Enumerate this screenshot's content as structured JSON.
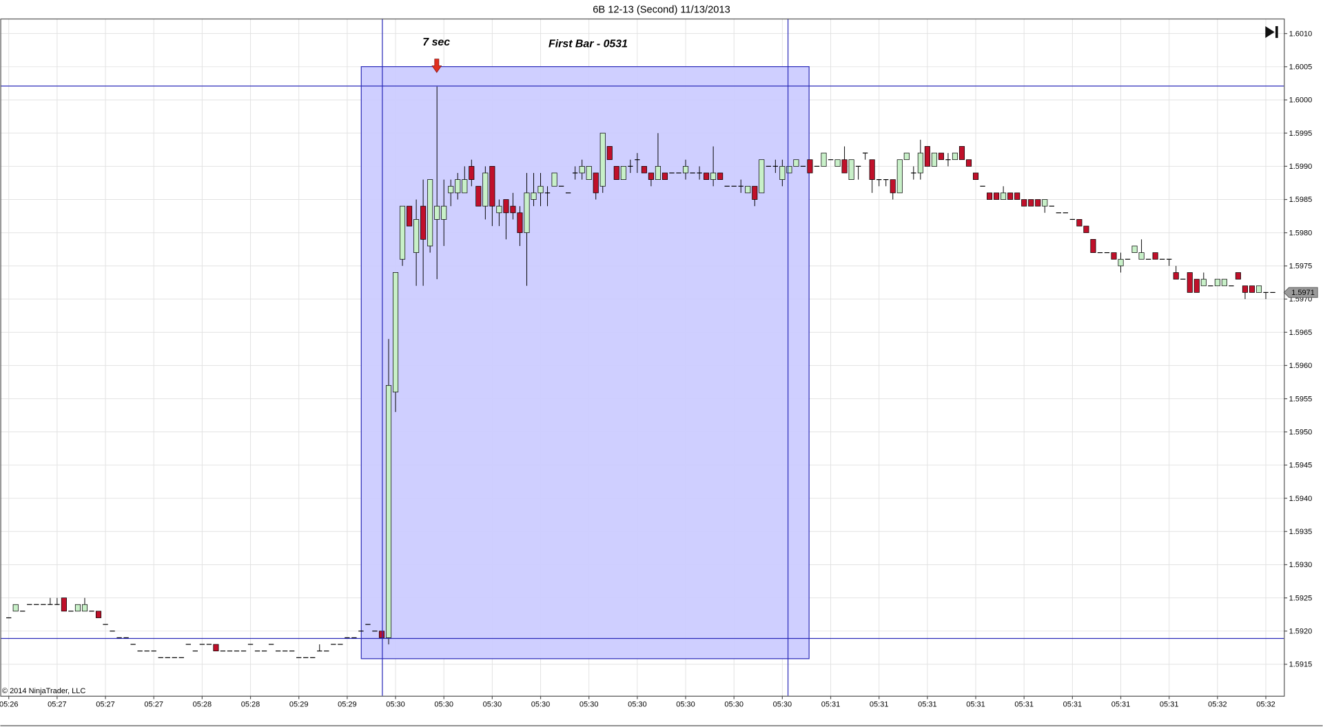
{
  "chart_data": {
    "type": "candlestick",
    "title": "6B 12-13 (Second)  11/13/2013",
    "annotations": [
      "7 sec",
      "First Bar - 0531"
    ],
    "copyright": "© 2014 NinjaTrader, LLC",
    "last_price": 1.5971,
    "up_color": "#c8f0c8",
    "down_color": "#c0102a",
    "grid": true,
    "ylim": [
      1.591,
      1.6012
    ],
    "yticks": [
      1.5915,
      {
        "value": 1.592,
        "label": "1.5920"
      },
      1.5925,
      {
        "value": 1.593,
        "label": "1.5930"
      },
      1.5935,
      {
        "value": 1.594,
        "label": "1.5940"
      },
      1.5945,
      {
        "value": 1.595,
        "label": "1.5950"
      },
      1.5955,
      {
        "value": 1.596,
        "label": "1.5960"
      },
      1.5965,
      {
        "value": 1.597,
        "label": "1.5970"
      },
      1.5975,
      {
        "value": 1.598,
        "label": "1.5980"
      },
      1.5985,
      {
        "value": 1.599,
        "label": "1.5990"
      },
      1.5995,
      {
        "value": 1.6,
        "label": "1.6000"
      },
      1.6005,
      {
        "value": 1.601,
        "label": "1.6010"
      }
    ],
    "categories": [
      "05:26",
      null,
      null,
      null,
      null,
      null,
      null,
      "05:27",
      null,
      null,
      null,
      null,
      null,
      null,
      "05:27",
      null,
      null,
      null,
      null,
      null,
      null,
      "05:27",
      null,
      null,
      null,
      null,
      null,
      null,
      "05:28",
      null,
      null,
      null,
      null,
      null,
      null,
      "05:28",
      null,
      null,
      null,
      null,
      null,
      null,
      "05:29",
      null,
      null,
      null,
      null,
      null,
      null,
      "05:29",
      null,
      null,
      null,
      null,
      null,
      null,
      "05:30",
      null,
      null,
      null,
      null,
      null,
      null,
      "05:30",
      null,
      null,
      null,
      null,
      null,
      null,
      "05:30",
      null,
      null,
      null,
      null,
      null,
      null,
      "05:30",
      null,
      null,
      null,
      null,
      null,
      null,
      "05:30",
      null,
      null,
      null,
      null,
      null,
      null,
      "05:30",
      null,
      null,
      null,
      null,
      null,
      null,
      "05:30",
      null,
      null,
      null,
      null,
      null,
      null,
      "05:30",
      null,
      null,
      null,
      null,
      null,
      null,
      "05:30",
      null,
      null,
      null,
      null,
      null,
      null,
      "05:31",
      null,
      null,
      null,
      null,
      null,
      null,
      "05:31",
      null,
      null,
      null,
      null,
      null,
      null,
      "05:31",
      null,
      null,
      null,
      null,
      null,
      null,
      "05:31",
      null,
      null,
      null,
      null,
      null,
      null,
      "05:31",
      null,
      null,
      null,
      null,
      null,
      null,
      "05:31",
      null,
      null,
      null,
      null,
      null,
      null,
      "05:31",
      null,
      null,
      null,
      null,
      null,
      null,
      "05:31",
      null,
      null,
      null,
      null,
      null,
      null,
      "05:32",
      null,
      null,
      null,
      null,
      null,
      null,
      "05:32",
      null
    ],
    "ohlc": [
      [
        1.5922,
        1.5922,
        1.5922,
        1.5922
      ],
      [
        1.5923,
        1.5924,
        1.5923,
        1.5924
      ],
      [
        1.5923,
        1.5923,
        1.5923,
        1.5923
      ],
      [
        1.5924,
        1.5924,
        1.5924,
        1.5924
      ],
      [
        1.5924,
        1.5924,
        1.5924,
        1.5924
      ],
      [
        1.5924,
        1.5924,
        1.5924,
        1.5924
      ],
      [
        1.5924,
        1.5925,
        1.5924,
        1.5924
      ],
      [
        1.5924,
        1.5925,
        1.5924,
        1.5924
      ],
      [
        1.5925,
        1.5925,
        1.5923,
        1.5923
      ],
      [
        1.5923,
        1.5923,
        1.5923,
        1.5923
      ],
      [
        1.5923,
        1.5924,
        1.5923,
        1.5924
      ],
      [
        1.5923,
        1.5925,
        1.5923,
        1.5924
      ],
      [
        1.5923,
        1.5923,
        1.5923,
        1.5923
      ],
      [
        1.5923,
        1.5923,
        1.5922,
        1.5922
      ],
      [
        1.5921,
        1.5921,
        1.5921,
        1.5921
      ],
      [
        1.592,
        1.592,
        1.592,
        1.592
      ],
      [
        1.5919,
        1.5919,
        1.5919,
        1.5919
      ],
      [
        1.5919,
        1.5919,
        1.5919,
        1.5919
      ],
      [
        1.5918,
        1.5918,
        1.5918,
        1.5918
      ],
      [
        1.5917,
        1.5917,
        1.5917,
        1.5917
      ],
      [
        1.5917,
        1.5917,
        1.5917,
        1.5917
      ],
      [
        1.5917,
        1.5917,
        1.5917,
        1.5917
      ],
      [
        1.5916,
        1.5916,
        1.5916,
        1.5916
      ],
      [
        1.5916,
        1.5916,
        1.5916,
        1.5916
      ],
      [
        1.5916,
        1.5916,
        1.5916,
        1.5916
      ],
      [
        1.5916,
        1.5916,
        1.5916,
        1.5916
      ],
      [
        1.5918,
        1.5918,
        1.5918,
        1.5918
      ],
      [
        1.5917,
        1.5917,
        1.5917,
        1.5917
      ],
      [
        1.5918,
        1.5918,
        1.5918,
        1.5918
      ],
      [
        1.5918,
        1.5918,
        1.5918,
        1.5918
      ],
      [
        1.5918,
        1.5918,
        1.5917,
        1.5917
      ],
      [
        1.5917,
        1.5917,
        1.5917,
        1.5917
      ],
      [
        1.5917,
        1.5917,
        1.5917,
        1.5917
      ],
      [
        1.5917,
        1.5917,
        1.5917,
        1.5917
      ],
      [
        1.5917,
        1.5917,
        1.5917,
        1.5917
      ],
      [
        1.5918,
        1.5918,
        1.5918,
        1.5918
      ],
      [
        1.5917,
        1.5917,
        1.5917,
        1.5917
      ],
      [
        1.5917,
        1.5917,
        1.5917,
        1.5917
      ],
      [
        1.5918,
        1.5918,
        1.5918,
        1.5918
      ],
      [
        1.5917,
        1.5917,
        1.5917,
        1.5917
      ],
      [
        1.5917,
        1.5917,
        1.5917,
        1.5917
      ],
      [
        1.5917,
        1.5917,
        1.5917,
        1.5917
      ],
      [
        1.5916,
        1.5916,
        1.5916,
        1.5916
      ],
      [
        1.5916,
        1.5916,
        1.5916,
        1.5916
      ],
      [
        1.5916,
        1.5916,
        1.5916,
        1.5916
      ],
      [
        1.5917,
        1.5918,
        1.5917,
        1.5917
      ],
      [
        1.5917,
        1.5917,
        1.5917,
        1.5917
      ],
      [
        1.5918,
        1.5918,
        1.5918,
        1.5918
      ],
      [
        1.5918,
        1.5918,
        1.5918,
        1.5918
      ],
      [
        1.5919,
        1.5919,
        1.5919,
        1.5919
      ],
      [
        1.5919,
        1.5919,
        1.5919,
        1.5919
      ],
      [
        1.592,
        1.592,
        1.592,
        1.592
      ],
      [
        1.5921,
        1.5921,
        1.5921,
        1.5921
      ],
      [
        1.592,
        1.592,
        1.592,
        1.592
      ],
      [
        1.592,
        1.592,
        1.5919,
        1.5919
      ],
      [
        1.5919,
        1.5964,
        1.5918,
        1.5957
      ],
      [
        1.5956,
        1.5974,
        1.5953,
        1.5974
      ],
      [
        1.5976,
        1.5984,
        1.5975,
        1.5984
      ],
      [
        1.5984,
        1.5984,
        1.5981,
        1.5981
      ],
      [
        1.5977,
        1.5985,
        1.5972,
        1.5982
      ],
      [
        1.5984,
        1.5988,
        1.5972,
        1.5979
      ],
      [
        1.5978,
        1.5988,
        1.5977,
        1.5988
      ],
      [
        1.5982,
        1.6002,
        1.5973,
        1.5984
      ],
      [
        1.5982,
        1.5988,
        1.5978,
        1.5984
      ],
      [
        1.5986,
        1.5988,
        1.5984,
        1.5987
      ],
      [
        1.5986,
        1.5989,
        1.5985,
        1.5988
      ],
      [
        1.5986,
        1.599,
        1.5986,
        1.5988
      ],
      [
        1.599,
        1.5991,
        1.5987,
        1.5988
      ],
      [
        1.5987,
        1.5987,
        1.5984,
        1.5984
      ],
      [
        1.5984,
        1.599,
        1.5982,
        1.5989
      ],
      [
        1.599,
        1.599,
        1.5981,
        1.5984
      ],
      [
        1.5983,
        1.5985,
        1.5981,
        1.5984
      ],
      [
        1.5985,
        1.5985,
        1.5979,
        1.5983
      ],
      [
        1.5984,
        1.5986,
        1.5982,
        1.5983
      ],
      [
        1.5983,
        1.5984,
        1.5978,
        1.598
      ],
      [
        1.598,
        1.5989,
        1.5972,
        1.5986
      ],
      [
        1.5985,
        1.5989,
        1.5984,
        1.5986
      ],
      [
        1.5986,
        1.5989,
        1.5984,
        1.5987
      ],
      [
        1.5986,
        1.5987,
        1.5984,
        1.5986
      ],
      [
        1.5987,
        1.5989,
        1.5987,
        1.5989
      ],
      [
        1.5987,
        1.5987,
        1.5987,
        1.5987
      ],
      [
        1.5986,
        1.5986,
        1.5986,
        1.5986
      ],
      [
        1.5989,
        1.599,
        1.5988,
        1.5989
      ],
      [
        1.5989,
        1.5991,
        1.5988,
        1.599
      ],
      [
        1.5988,
        1.599,
        1.5988,
        1.599
      ],
      [
        1.5989,
        1.5989,
        1.5985,
        1.5986
      ],
      [
        1.5987,
        1.5995,
        1.5986,
        1.5995
      ],
      [
        1.5993,
        1.5993,
        1.5991,
        1.5991
      ],
      [
        1.599,
        1.599,
        1.5988,
        1.5988
      ],
      [
        1.5988,
        1.599,
        1.5988,
        1.599
      ],
      [
        1.599,
        1.5991,
        1.5989,
        1.599
      ],
      [
        1.5991,
        1.5992,
        1.5989,
        1.5991
      ],
      [
        1.599,
        1.599,
        1.5989,
        1.5989
      ],
      [
        1.5989,
        1.5989,
        1.5987,
        1.5988
      ],
      [
        1.5988,
        1.5995,
        1.5988,
        1.599
      ],
      [
        1.5989,
        1.5989,
        1.5988,
        1.5988
      ],
      [
        1.5989,
        1.5989,
        1.5989,
        1.5989
      ],
      [
        1.5989,
        1.5989,
        1.5989,
        1.5989
      ],
      [
        1.5989,
        1.5991,
        1.5988,
        1.599
      ],
      [
        1.5989,
        1.5989,
        1.5989,
        1.5989
      ],
      [
        1.5989,
        1.599,
        1.5988,
        1.5989
      ],
      [
        1.5989,
        1.5989,
        1.5988,
        1.5988
      ],
      [
        1.5988,
        1.5993,
        1.5987,
        1.5989
      ],
      [
        1.5989,
        1.5989,
        1.5988,
        1.5988
      ],
      [
        1.5987,
        1.5987,
        1.5987,
        1.5987
      ],
      [
        1.5987,
        1.5987,
        1.5987,
        1.5987
      ],
      [
        1.5987,
        1.5988,
        1.5986,
        1.5987
      ],
      [
        1.5986,
        1.5987,
        1.5986,
        1.5987
      ],
      [
        1.5987,
        1.5987,
        1.5984,
        1.5985
      ],
      [
        1.5986,
        1.5991,
        1.5986,
        1.5991
      ],
      [
        1.599,
        1.599,
        1.599,
        1.599
      ],
      [
        1.599,
        1.5991,
        1.5989,
        1.599
      ],
      [
        1.5988,
        1.5991,
        1.5987,
        1.599
      ],
      [
        1.5989,
        1.599,
        1.5989,
        1.599
      ],
      [
        1.599,
        1.5991,
        1.599,
        1.5991
      ],
      [
        1.599,
        1.599,
        1.599,
        1.599
      ],
      [
        1.5991,
        1.5991,
        1.5989,
        1.5989
      ],
      [
        1.599,
        1.599,
        1.599,
        1.599
      ],
      [
        1.599,
        1.5992,
        1.599,
        1.5992
      ],
      [
        1.5991,
        1.5991,
        1.5991,
        1.5991
      ],
      [
        1.599,
        1.5991,
        1.599,
        1.5991
      ],
      [
        1.5991,
        1.5993,
        1.5989,
        1.5989
      ],
      [
        1.5988,
        1.5991,
        1.5988,
        1.5991
      ],
      [
        1.599,
        1.599,
        1.5988,
        1.599
      ],
      [
        1.5992,
        1.5992,
        1.5991,
        1.5992
      ],
      [
        1.5991,
        1.5991,
        1.5986,
        1.5988
      ],
      [
        1.5988,
        1.5988,
        1.5987,
        1.5988
      ],
      [
        1.5988,
        1.5988,
        1.5987,
        1.5988
      ],
      [
        1.5988,
        1.5988,
        1.5985,
        1.5986
      ],
      [
        1.5986,
        1.5991,
        1.5986,
        1.5991
      ],
      [
        1.5991,
        1.5992,
        1.5991,
        1.5992
      ],
      [
        1.5989,
        1.599,
        1.5988,
        1.5989
      ],
      [
        1.5989,
        1.5994,
        1.5988,
        1.5992
      ],
      [
        1.5993,
        1.5993,
        1.599,
        1.599
      ],
      [
        1.599,
        1.5992,
        1.599,
        1.5992
      ],
      [
        1.5992,
        1.5992,
        1.5991,
        1.5991
      ],
      [
        1.5991,
        1.5992,
        1.599,
        1.5991
      ],
      [
        1.5991,
        1.5992,
        1.5991,
        1.5992
      ],
      [
        1.5993,
        1.5993,
        1.5991,
        1.5991
      ],
      [
        1.5991,
        1.5991,
        1.599,
        1.599
      ],
      [
        1.5989,
        1.5989,
        1.5988,
        1.5988
      ],
      [
        1.5987,
        1.5987,
        1.5987,
        1.5987
      ],
      [
        1.5986,
        1.5986,
        1.5985,
        1.5985
      ],
      [
        1.5986,
        1.5986,
        1.5985,
        1.5985
      ],
      [
        1.5985,
        1.5987,
        1.5985,
        1.5986
      ],
      [
        1.5986,
        1.5986,
        1.5985,
        1.5985
      ],
      [
        1.5986,
        1.5986,
        1.5985,
        1.5985
      ],
      [
        1.5985,
        1.5985,
        1.5984,
        1.5984
      ],
      [
        1.5985,
        1.5985,
        1.5984,
        1.5984
      ],
      [
        1.5985,
        1.5985,
        1.5984,
        1.5984
      ],
      [
        1.5984,
        1.5985,
        1.5983,
        1.5985
      ],
      [
        1.5984,
        1.5984,
        1.5984,
        1.5984
      ],
      [
        1.5983,
        1.5983,
        1.5983,
        1.5983
      ],
      [
        1.5983,
        1.5983,
        1.5983,
        1.5983
      ],
      [
        1.5982,
        1.5982,
        1.5982,
        1.5982
      ],
      [
        1.5982,
        1.5982,
        1.5981,
        1.5981
      ],
      [
        1.5981,
        1.5981,
        1.598,
        1.598
      ],
      [
        1.5979,
        1.5979,
        1.5977,
        1.5977
      ],
      [
        1.5977,
        1.5977,
        1.5977,
        1.5977
      ],
      [
        1.5977,
        1.5977,
        1.5977,
        1.5977
      ],
      [
        1.5977,
        1.5977,
        1.5976,
        1.5976
      ],
      [
        1.5975,
        1.5977,
        1.5974,
        1.5976
      ],
      [
        1.5976,
        1.5976,
        1.5976,
        1.5976
      ],
      [
        1.5977,
        1.5978,
        1.5977,
        1.5978
      ],
      [
        1.5976,
        1.5979,
        1.5976,
        1.5977
      ],
      [
        1.5976,
        1.5976,
        1.5976,
        1.5976
      ],
      [
        1.5977,
        1.5977,
        1.5976,
        1.5976
      ],
      [
        1.5976,
        1.5976,
        1.5976,
        1.5976
      ],
      [
        1.5976,
        1.5976,
        1.5975,
        1.5976
      ],
      [
        1.5974,
        1.5975,
        1.5973,
        1.5973
      ],
      [
        1.5973,
        1.5973,
        1.5973,
        1.5973
      ],
      [
        1.5974,
        1.5974,
        1.5971,
        1.5971
      ],
      [
        1.5973,
        1.5973,
        1.5971,
        1.5971
      ],
      [
        1.5972,
        1.5974,
        1.5972,
        1.5973
      ],
      [
        1.5972,
        1.5972,
        1.5972,
        1.5972
      ],
      [
        1.5972,
        1.5973,
        1.5972,
        1.5973
      ],
      [
        1.5972,
        1.5973,
        1.5972,
        1.5973
      ],
      [
        1.5972,
        1.5972,
        1.5972,
        1.5972
      ],
      [
        1.5974,
        1.5974,
        1.5973,
        1.5973
      ],
      [
        1.5972,
        1.5972,
        1.597,
        1.5971
      ],
      [
        1.5972,
        1.5972,
        1.5971,
        1.5971
      ],
      [
        1.5971,
        1.5972,
        1.5971,
        1.5972
      ],
      [
        1.5971,
        1.5971,
        1.597,
        1.5971
      ],
      [
        1.5971,
        1.5971,
        1.5971,
        1.5971
      ]
    ]
  }
}
